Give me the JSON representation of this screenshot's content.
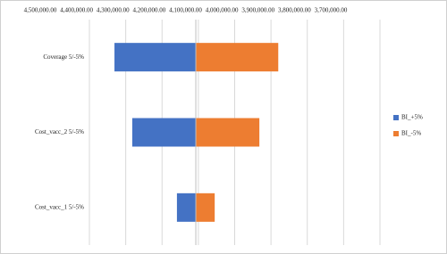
{
  "chart_data": {
    "type": "tornado",
    "categories": [
      "Coverage 5/-5%",
      "Cost_vacc_2 5/-5%",
      "Cost_vacc_1 5/-5%"
    ],
    "series": [
      {
        "name": "BI_+5%",
        "color": "#4472c4",
        "values": [
          4431000,
          4382000,
          4259000
        ]
      },
      {
        "name": "BI_-5%",
        "color": "#ed7d31",
        "values": [
          3980000,
          4032000,
          4155000
        ]
      }
    ],
    "xlim": [
      4500000,
      3700000
    ],
    "xticks": [
      {
        "value": 4500000,
        "label": "4,500,000.00"
      },
      {
        "value": 4400000,
        "label": "4,400,000.00"
      },
      {
        "value": 4300000,
        "label": "4,300,000.00"
      },
      {
        "value": 4200000,
        "label": "4,200,000.00"
      },
      {
        "value": 4100000,
        "label": "4,100,000.00"
      },
      {
        "value": 4000000,
        "label": "4,000,000.00"
      },
      {
        "value": 3900000,
        "label": "3,900,000.00"
      },
      {
        "value": 3800000,
        "label": "3,800,000.00"
      },
      {
        "value": 3700000,
        "label": "3,700,000.00"
      }
    ],
    "xcross": 4207000,
    "grid": true,
    "legend": "right"
  }
}
